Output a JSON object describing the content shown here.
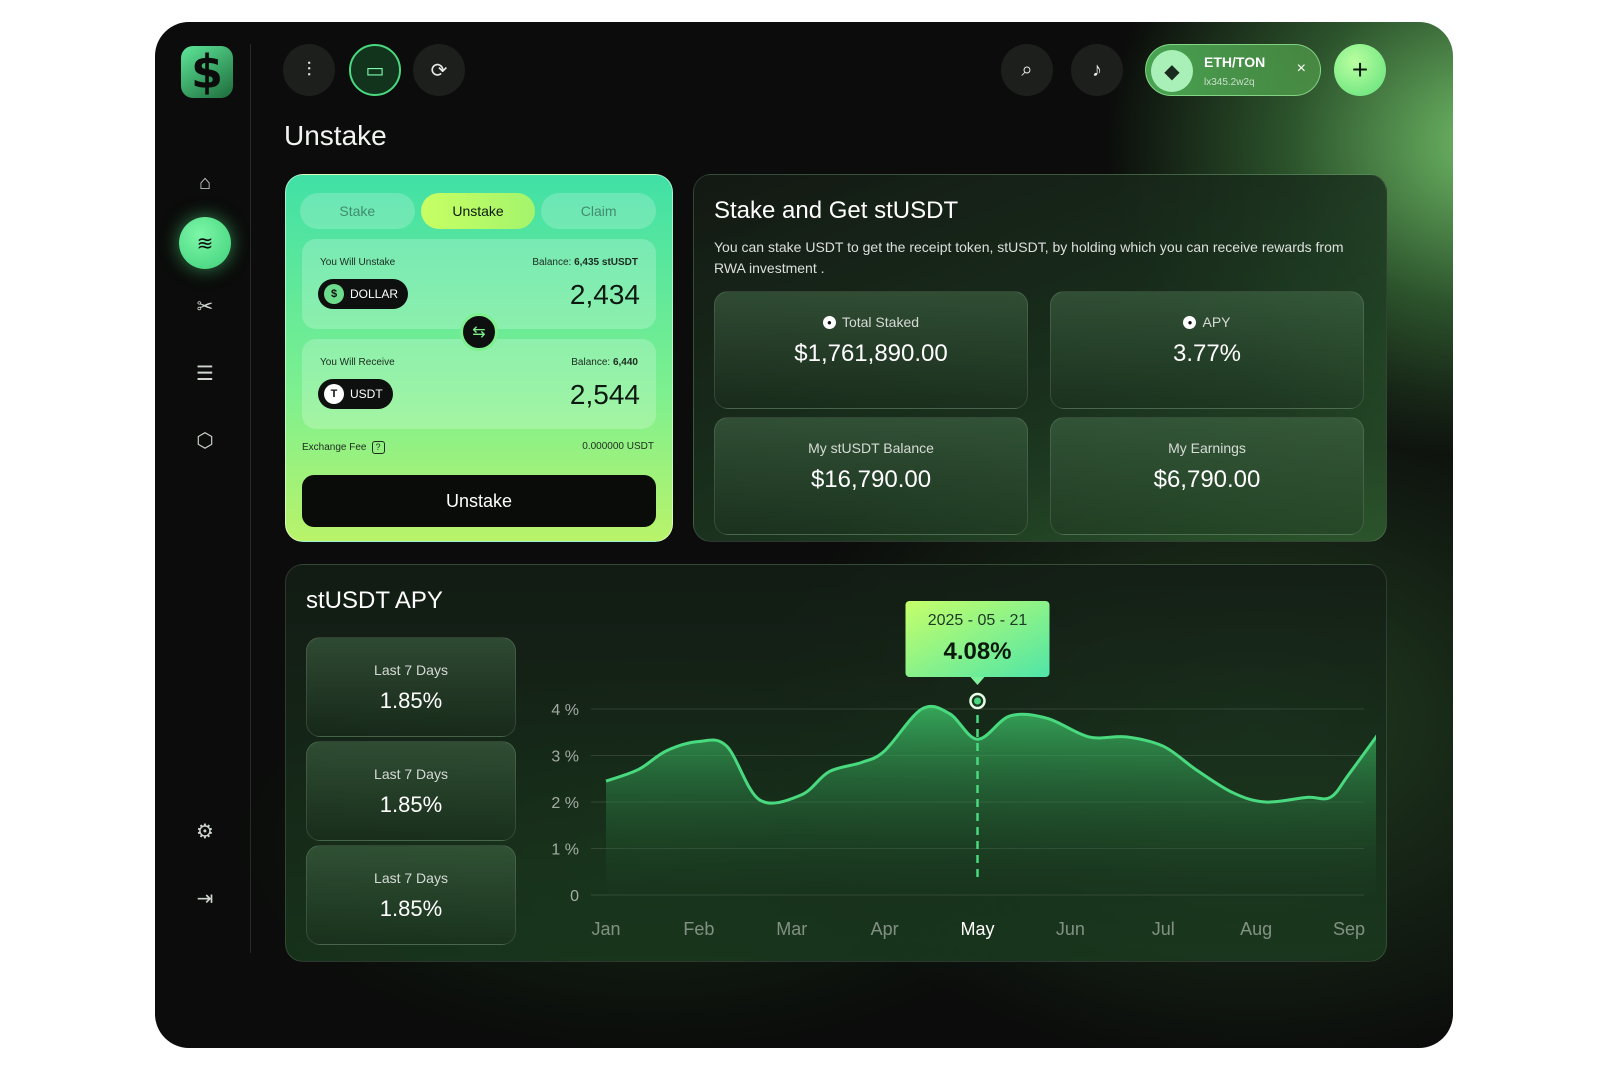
{
  "nav": {
    "logo": "$",
    "items": [
      {
        "name": "home",
        "icon": "⌂"
      },
      {
        "name": "layers",
        "icon": "≋"
      },
      {
        "name": "tools",
        "icon": "✂"
      },
      {
        "name": "database",
        "icon": "☰"
      },
      {
        "name": "cube",
        "icon": "⬡"
      }
    ],
    "settings_icon": "⚙",
    "logout_icon": "⇥"
  },
  "topbar": {
    "icons": [
      "⫶",
      "▭",
      "⟳"
    ],
    "search_icon": "⌕",
    "bell_icon": "♪",
    "wallet": {
      "name": "ETH/TON",
      "address": "lx345.2w2q",
      "icon": "◆",
      "close": "×"
    },
    "plus": "+"
  },
  "page": {
    "title": "Unstake"
  },
  "unstake": {
    "tabs": [
      "Stake",
      "Unstake",
      "Claim"
    ],
    "from": {
      "label": "You Will Unstake",
      "balance_prefix": "Balance:",
      "balance": "6,435 stUSDT",
      "token": "DOLLAR",
      "token_icon": "$",
      "value": "2,434"
    },
    "to": {
      "label": "You Will Receive",
      "balance_prefix": "Balance:",
      "balance": "6,440",
      "token": "USDT",
      "token_icon": "T",
      "value": "2,544"
    },
    "swap_icon": "⇆",
    "fee_label": "Exchange Fee",
    "fee_help": "?",
    "fee_value": "0.000000 USDT",
    "button": "Unstake"
  },
  "info": {
    "title": "Stake and Get stUSDT",
    "description": "You can stake USDT to get the receipt token, stUSDT, by holding which you can receive rewards from RWA investment .",
    "stats": [
      {
        "label": "Total Staked",
        "value": "$1,761,890.00",
        "dot": true
      },
      {
        "label": "APY",
        "value": "3.77%",
        "dot": true
      },
      {
        "label": "My stUSDT Balance",
        "value": "$16,790.00",
        "dot": false
      },
      {
        "label": "My Earnings",
        "value": "$6,790.00",
        "dot": false
      }
    ]
  },
  "apy": {
    "title": "stUSDT APY",
    "periods": [
      {
        "label": "Last 7 Days",
        "value": "1.85%"
      },
      {
        "label": "Last 7 Days",
        "value": "1.85%"
      },
      {
        "label": "Last 7 Days",
        "value": "1.85%"
      }
    ]
  },
  "chart_data": {
    "type": "area",
    "title": "stUSDT APY",
    "categories": [
      "Jan",
      "Feb",
      "Mar",
      "Apr",
      "May",
      "Jun",
      "Jul",
      "Aug",
      "Sep"
    ],
    "x": [
      0,
      0.35,
      0.65,
      1.0,
      1.3,
      1.65,
      2.1,
      2.4,
      2.75,
      3.0,
      3.4,
      3.7,
      4.0,
      4.35,
      4.75,
      5.2,
      5.6,
      6.0,
      6.35,
      6.75,
      7.1,
      7.55,
      7.8,
      8.0,
      8.4
    ],
    "values": [
      2.45,
      2.7,
      3.1,
      3.3,
      3.2,
      2.05,
      2.15,
      2.65,
      2.85,
      3.1,
      4.0,
      3.9,
      3.35,
      3.85,
      3.8,
      3.4,
      3.4,
      3.2,
      2.7,
      2.2,
      2.0,
      2.1,
      2.1,
      2.6,
      3.7
    ],
    "ylim": [
      0,
      4
    ],
    "yticks": [
      "0",
      "1 %",
      "2 %",
      "3 %",
      "4 %"
    ],
    "highlight": {
      "date": "2025 - 05 - 21",
      "value": "4.08%",
      "month_index": 4
    },
    "grid": true
  }
}
